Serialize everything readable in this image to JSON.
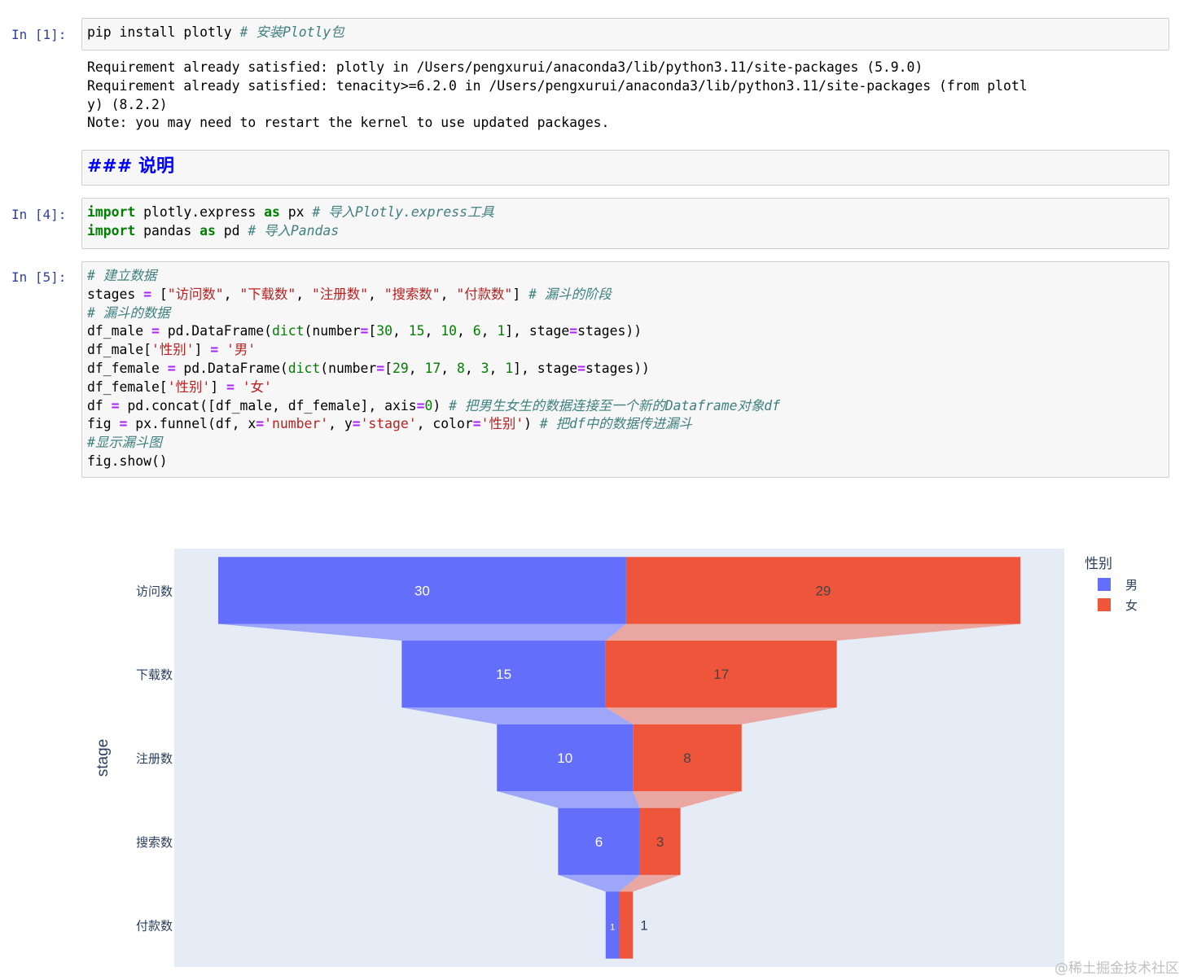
{
  "cells": {
    "c1": {
      "prompt": "In [1]:",
      "code": "pip install plotly",
      "comment": "# 安装Plotly包",
      "output": [
        "Requirement already satisfied: plotly in /Users/pengxurui/anaconda3/lib/python3.11/site-packages (5.9.0)",
        "Requirement already satisfied: tenacity>=6.2.0 in /Users/pengxurui/anaconda3/lib/python3.11/site-packages (from plotl",
        "y) (8.2.2)",
        "Note: you may need to restart the kernel to use updated packages."
      ]
    },
    "markdown": {
      "text": "### 说明"
    },
    "c4": {
      "prompt": "In [4]:",
      "l1_kw": "import",
      "l1_mod": " plotly.express ",
      "l1_as": "as",
      "l1_alias": " px ",
      "l1_cm": "# 导入Plotly.express工具",
      "l2_kw": "import",
      "l2_mod": " pandas ",
      "l2_as": "as",
      "l2_alias": " pd ",
      "l2_cm": "# 导入Pandas"
    },
    "c5": {
      "prompt": "In [5]:"
    }
  },
  "chart_data": {
    "type": "funnel",
    "ylabel": "stage",
    "legend_title": "性别",
    "legend_position": "top-right",
    "categories": [
      "访问数",
      "下载数",
      "注册数",
      "搜索数",
      "付款数"
    ],
    "series": [
      {
        "name": "男",
        "color": "#636efa",
        "values": [
          30,
          15,
          10,
          6,
          1
        ]
      },
      {
        "name": "女",
        "color": "#ef553b",
        "values": [
          29,
          17,
          8,
          3,
          1
        ]
      }
    ],
    "plot_background": "#e5ecf6"
  },
  "watermark": "@稀土掘金技术社区"
}
